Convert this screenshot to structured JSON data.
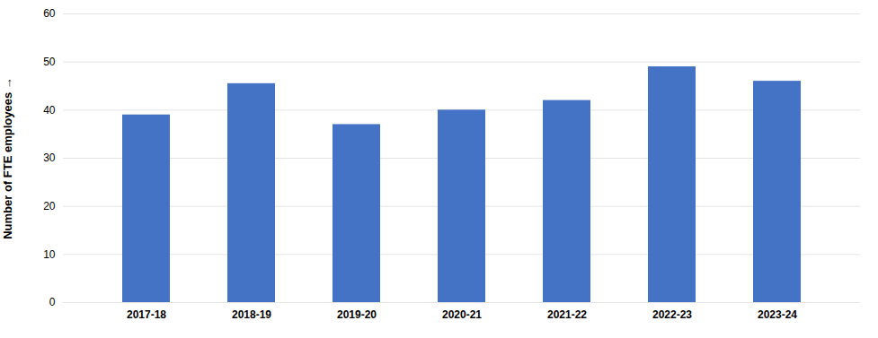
{
  "chart_data": {
    "type": "bar",
    "categories": [
      "2017-18",
      "2018-19",
      "2019-20",
      "2020-21",
      "2021-22",
      "2022-23",
      "2023-24"
    ],
    "values": [
      39,
      45.5,
      37,
      40,
      42,
      49,
      46
    ],
    "color": "#4472c4",
    "ylabel": "Number of FTE employees",
    "ylim": [
      0,
      60
    ],
    "yticks": [
      0,
      10,
      20,
      30,
      40,
      50,
      60
    ],
    "grid": true
  }
}
